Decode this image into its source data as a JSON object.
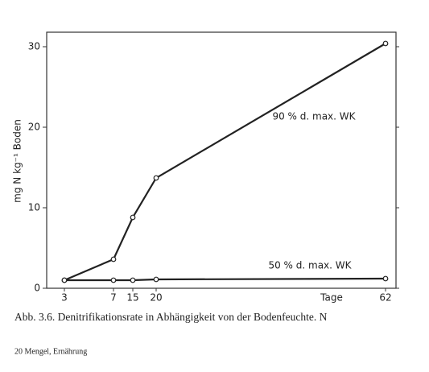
{
  "chart_data": {
    "type": "line",
    "y_label": "mg N kg⁻¹ Boden",
    "x_label": "Tage",
    "categories": [
      "3",
      "7",
      "15",
      "20",
      "62"
    ],
    "series": [
      {
        "name": "90 % d. max. WK",
        "color": "#222222",
        "values": [
          1,
          3.6,
          8.8,
          13.7,
          30.4
        ]
      },
      {
        "name": "50 % d. max. WK",
        "color": "#222222",
        "values": [
          1,
          1,
          1,
          1.1,
          1.2
        ]
      }
    ],
    "ylim": [
      0,
      31.8
    ],
    "yticks": [
      0,
      10,
      20,
      30
    ],
    "grid": false,
    "caption": "Abb. 3.6. Denitrifikationsrate in Abhängigkeit von der Bodenfeuchte. N",
    "footer": "20 Mengel, Ernährung"
  }
}
